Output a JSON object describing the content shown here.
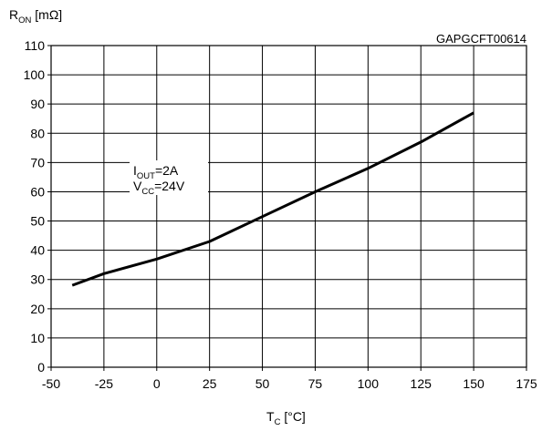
{
  "chart_data": {
    "type": "line",
    "y_label": {
      "main": "R",
      "sub": "ON",
      "unit": " [mΩ]"
    },
    "x_label": {
      "main": "T",
      "sub": "C",
      "unit": " [°C]"
    },
    "figure_code": "GAPGCFT00614",
    "annotation": {
      "line1": {
        "main": "I",
        "sub": "OUT",
        "rest": "=2A"
      },
      "line2": {
        "main": "V",
        "sub": "CC",
        "rest": "=24V"
      }
    },
    "x_ticks": [
      -50,
      -25,
      0,
      25,
      50,
      75,
      100,
      125,
      150,
      175
    ],
    "y_ticks": [
      0,
      10,
      20,
      30,
      40,
      50,
      60,
      70,
      80,
      90,
      100,
      110
    ],
    "xlim": [
      -50,
      175
    ],
    "ylim": [
      0,
      110
    ],
    "grid": true,
    "series": [
      {
        "x": [
          -40,
          -25,
          0,
          25,
          50,
          75,
          100,
          125,
          150
        ],
        "y": [
          28,
          32,
          37,
          43,
          51.5,
          60,
          68,
          77,
          87
        ]
      }
    ],
    "colors": {
      "line": "#000000",
      "grid": "#000000"
    }
  }
}
